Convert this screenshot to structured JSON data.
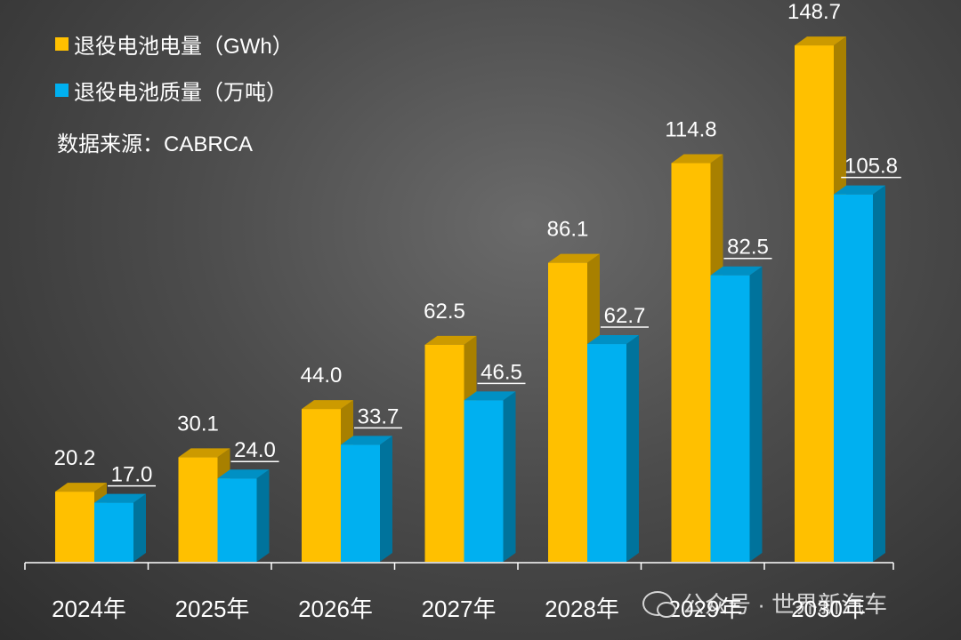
{
  "chart_data": {
    "type": "bar",
    "categories": [
      "2024年",
      "2025年",
      "2026年",
      "2027年",
      "2028年",
      "2029年",
      "2030年"
    ],
    "series": [
      {
        "name": "退役电池电量（GWh）",
        "values": [
          20.2,
          30.1,
          44.0,
          62.5,
          86.1,
          114.8,
          148.7
        ],
        "labels": [
          "20.2",
          "30.1",
          "44.0",
          "62.5",
          "86.1",
          "114.8",
          "148.7"
        ]
      },
      {
        "name": "退役电池质量（万吨）",
        "values": [
          17.0,
          24.0,
          33.7,
          46.5,
          62.7,
          82.5,
          105.8
        ],
        "labels": [
          "17.0",
          "24.0",
          "33.7",
          "46.5",
          "62.7",
          "82.5",
          "105.8"
        ]
      }
    ],
    "ylim": [
      0,
      150
    ],
    "title": "",
    "xlabel": "",
    "ylabel": ""
  },
  "legend": {
    "energy_label": "退役电池电量（GWh）",
    "mass_label": "退役电池质量（万吨）"
  },
  "source_text": "数据来源：CABRCA",
  "watermark_text": "公众号 · 世界新汽车",
  "colors": {
    "energy_front": "#FFC000",
    "energy_side": "#A88000",
    "energy_top": "#CC9A00",
    "mass_front": "#00B0F0",
    "mass_side": "#00739C",
    "mass_top": "#0090C4"
  }
}
